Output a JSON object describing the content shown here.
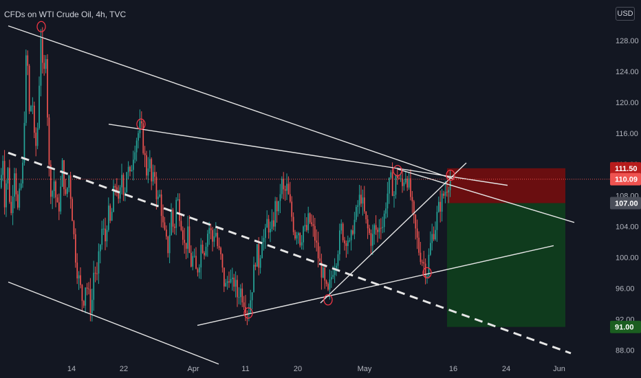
{
  "header": {
    "title": "CFDs on WTI Crude Oil, 4h, TVC",
    "currency": "USD"
  },
  "colors": {
    "background": "#131722",
    "up": "#26a69a",
    "down": "#ef5350",
    "line": "#e6e6e6",
    "marker": "#f23645",
    "stop_zone": "#7a0d0d",
    "target_zone": "#0f3d1e",
    "current_price_line": "#ef5350"
  },
  "chart_data": {
    "type": "candlestick",
    "title": "CFDs on WTI Crude Oil, 4h, TVC",
    "y_ticks": [
      "128.00",
      "124.00",
      "120.00",
      "116.00",
      "112.00",
      "108.00",
      "104.00",
      "100.00",
      "96.00",
      "92.00",
      "88.00"
    ],
    "x_ticks": [
      "14",
      "22",
      "Apr",
      "11",
      "20",
      "May",
      "16",
      "24",
      "Jun"
    ],
    "ylim": [
      86,
      132
    ],
    "price_path": [
      [
        0,
        109
      ],
      [
        3,
        114
      ],
      [
        6,
        107
      ],
      [
        10,
        112
      ],
      [
        15,
        105
      ],
      [
        20,
        112
      ],
      [
        25,
        106
      ],
      [
        32,
        111
      ],
      [
        38,
        128
      ],
      [
        42,
        118
      ],
      [
        46,
        121
      ],
      [
        50,
        113
      ],
      [
        55,
        118
      ],
      [
        58,
        130
      ],
      [
        62,
        122
      ],
      [
        66,
        127
      ],
      [
        70,
        112
      ],
      [
        74,
        108
      ],
      [
        78,
        110
      ],
      [
        82,
        106
      ],
      [
        86,
        107
      ],
      [
        90,
        112
      ],
      [
        95,
        107
      ],
      [
        99,
        111
      ],
      [
        103,
        107
      ],
      [
        108,
        101
      ],
      [
        112,
        98
      ],
      [
        116,
        96
      ],
      [
        120,
        94
      ],
      [
        124,
        97
      ],
      [
        128,
        95
      ],
      [
        132,
        93
      ],
      [
        136,
        99
      ],
      [
        140,
        97
      ],
      [
        144,
        101
      ],
      [
        148,
        104
      ],
      [
        152,
        102
      ],
      [
        156,
        106
      ],
      [
        160,
        104
      ],
      [
        164,
        108
      ],
      [
        168,
        110
      ],
      [
        172,
        106
      ],
      [
        176,
        111
      ],
      [
        180,
        108
      ],
      [
        184,
        112
      ],
      [
        188,
        110
      ],
      [
        192,
        113
      ],
      [
        196,
        115
      ],
      [
        200,
        116
      ],
      [
        204,
        117
      ],
      [
        208,
        114
      ],
      [
        212,
        111
      ],
      [
        216,
        113
      ],
      [
        220,
        109
      ],
      [
        224,
        111
      ],
      [
        228,
        107
      ],
      [
        232,
        108
      ],
      [
        236,
        104
      ],
      [
        240,
        102
      ],
      [
        244,
        101
      ],
      [
        248,
        106
      ],
      [
        252,
        103
      ],
      [
        256,
        108
      ],
      [
        260,
        106
      ],
      [
        264,
        104
      ],
      [
        268,
        101
      ],
      [
        272,
        103
      ],
      [
        276,
        99
      ],
      [
        280,
        100
      ],
      [
        284,
        98
      ],
      [
        288,
        99
      ],
      [
        292,
        102
      ],
      [
        296,
        101
      ],
      [
        300,
        103
      ],
      [
        304,
        104
      ],
      [
        308,
        102
      ],
      [
        312,
        104
      ],
      [
        316,
        101
      ],
      [
        320,
        100
      ],
      [
        324,
        97
      ],
      [
        328,
        96
      ],
      [
        332,
        98
      ],
      [
        336,
        96
      ],
      [
        340,
        97
      ],
      [
        344,
        95
      ],
      [
        348,
        96
      ],
      [
        352,
        95
      ],
      [
        356,
        94
      ],
      [
        360,
        93
      ],
      [
        364,
        95
      ],
      [
        368,
        98
      ],
      [
        372,
        101
      ],
      [
        376,
        99
      ],
      [
        380,
        103
      ],
      [
        384,
        102
      ],
      [
        388,
        105
      ],
      [
        392,
        103
      ],
      [
        396,
        104
      ],
      [
        400,
        107
      ],
      [
        404,
        106
      ],
      [
        408,
        110
      ],
      [
        412,
        108
      ],
      [
        416,
        109
      ],
      [
        420,
        107
      ],
      [
        424,
        105
      ],
      [
        428,
        103
      ],
      [
        432,
        104
      ],
      [
        436,
        102
      ],
      [
        440,
        104
      ],
      [
        444,
        103
      ],
      [
        448,
        105
      ],
      [
        452,
        104
      ],
      [
        456,
        103
      ],
      [
        460,
        101
      ],
      [
        464,
        99
      ],
      [
        468,
        98
      ],
      [
        472,
        96
      ],
      [
        476,
        95
      ],
      [
        480,
        97
      ],
      [
        484,
        99
      ],
      [
        488,
        100
      ],
      [
        492,
        102
      ],
      [
        496,
        104
      ],
      [
        500,
        102
      ],
      [
        504,
        103
      ],
      [
        508,
        101
      ],
      [
        512,
        104
      ],
      [
        516,
        105
      ],
      [
        520,
        107
      ],
      [
        524,
        108
      ],
      [
        528,
        106
      ],
      [
        532,
        104
      ],
      [
        536,
        103
      ],
      [
        540,
        102
      ],
      [
        544,
        104
      ],
      [
        548,
        103
      ],
      [
        552,
        105
      ],
      [
        556,
        104
      ],
      [
        560,
        107
      ],
      [
        564,
        109
      ],
      [
        568,
        110
      ],
      [
        572,
        108
      ],
      [
        576,
        111
      ],
      [
        580,
        110
      ],
      [
        584,
        109
      ],
      [
        588,
        111
      ],
      [
        592,
        110
      ],
      [
        596,
        108
      ],
      [
        600,
        105
      ],
      [
        604,
        103
      ],
      [
        608,
        101
      ],
      [
        612,
        100
      ],
      [
        616,
        99
      ],
      [
        620,
        98
      ],
      [
        624,
        101
      ],
      [
        628,
        103
      ],
      [
        632,
        104
      ],
      [
        636,
        106
      ],
      [
        640,
        107
      ],
      [
        644,
        108
      ],
      [
        648,
        109
      ],
      [
        652,
        110
      ],
      [
        656,
        110
      ]
    ],
    "current_price": 110.09,
    "levels": [
      {
        "label": "111.50",
        "value": 111.5,
        "bg": "#b71c1c",
        "fg": "#ffffff"
      },
      {
        "label": "110.09",
        "value": 110.09,
        "bg": "#ef5350",
        "fg": "#ffffff"
      },
      {
        "label": "107.00",
        "value": 107.0,
        "bg": "#4a4e59",
        "fg": "#ffffff"
      },
      {
        "label": "91.00",
        "value": 91.0,
        "bg": "#1b5e20",
        "fg": "#ffffff"
      }
    ],
    "trendlines": [
      {
        "x1": 12,
        "y1": 129.9,
        "x2": 660,
        "y2": 110.09,
        "dash": false
      },
      {
        "x1": 158,
        "y1": 117.2,
        "x2": 738,
        "y2": 109.3,
        "dash": false
      },
      {
        "x1": 12,
        "y1": 96.8,
        "x2": 318,
        "y2": 86.2,
        "dash": false
      },
      {
        "x1": 287,
        "y1": 91.2,
        "x2": 805,
        "y2": 101.5,
        "dash": false
      },
      {
        "x1": 466,
        "y1": 94.1,
        "x2": 678,
        "y2": 112.2,
        "dash": false
      },
      {
        "x1": 578,
        "y1": 111.4,
        "x2": 835,
        "y2": 104.5,
        "dash": false
      },
      {
        "x1": 12,
        "y1": 113.5,
        "x2": 830,
        "y2": 87.6,
        "dash": true
      }
    ],
    "markers": [
      {
        "x": 60,
        "y": 129.8
      },
      {
        "x": 205,
        "y": 117.2
      },
      {
        "x": 361,
        "y": 92.8
      },
      {
        "x": 477,
        "y": 94.5
      },
      {
        "x": 578,
        "y": 111.2
      },
      {
        "x": 621,
        "y": 98.0
      },
      {
        "x": 655,
        "y": 110.6
      }
    ],
    "position": {
      "entry": 107.0,
      "stop": 111.5,
      "target": 91.0,
      "x_start": 650,
      "x_end": 822
    }
  }
}
